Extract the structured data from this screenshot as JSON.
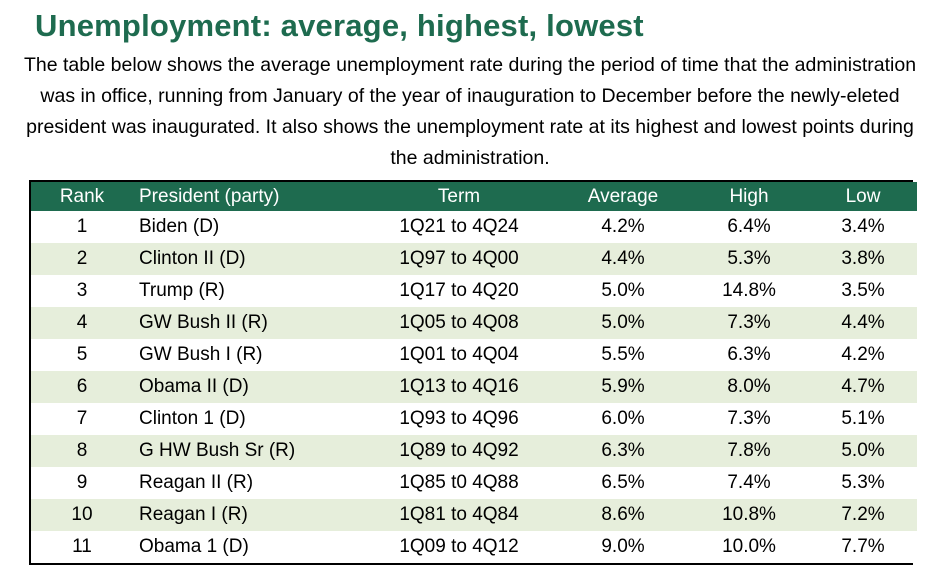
{
  "page": {
    "title": "Unemployment: average, highest, lowest",
    "subtitle": "The table below shows the average unemployment rate during the period of time that the administration was in office, running from January of the year of inauguration to December before the newly-eleted president was inaugurated.  It also shows the unemployment rate at its highest and lowest points during the administration."
  },
  "colors": {
    "title": "#1e6b4f",
    "header_bg": "#1e6b4f",
    "header_text": "#ffffff",
    "stripe": "#e6eedb"
  },
  "chart_data": {
    "type": "table",
    "title": "Unemployment: average, highest, lowest",
    "columns": [
      "Rank",
      "President (party)",
      "Term",
      "Average",
      "High",
      "Low"
    ],
    "rows": [
      [
        "1",
        "Biden (D)",
        "1Q21 to 4Q24",
        "4.2%",
        "6.4%",
        "3.4%"
      ],
      [
        "2",
        "Clinton II (D)",
        "1Q97 to 4Q00",
        "4.4%",
        "5.3%",
        "3.8%"
      ],
      [
        "3",
        "Trump (R)",
        "1Q17 to 4Q20",
        "5.0%",
        "14.8%",
        "3.5%"
      ],
      [
        "4",
        "GW Bush II (R)",
        "1Q05 to 4Q08",
        "5.0%",
        "7.3%",
        "4.4%"
      ],
      [
        "5",
        "GW Bush I (R)",
        "1Q01 to 4Q04",
        "5.5%",
        "6.3%",
        "4.2%"
      ],
      [
        "6",
        "Obama II (D)",
        "1Q13 to 4Q16",
        "5.9%",
        "8.0%",
        "4.7%"
      ],
      [
        "7",
        "Clinton 1 (D)",
        "1Q93 to 4Q96",
        "6.0%",
        "7.3%",
        "5.1%"
      ],
      [
        "8",
        "G HW Bush Sr (R)",
        "1Q89 to 4Q92",
        "6.3%",
        "7.8%",
        "5.0%"
      ],
      [
        "9",
        "Reagan II (R)",
        "1Q85 t0 4Q88",
        "6.5%",
        "7.4%",
        "5.3%"
      ],
      [
        "10",
        "Reagan I (R)",
        "1Q81 to 4Q84",
        "8.6%",
        "10.8%",
        "7.2%"
      ],
      [
        "11",
        "Obama 1 (D)",
        "1Q09 to 4Q12",
        "9.0%",
        "10.0%",
        "7.7%"
      ]
    ]
  }
}
